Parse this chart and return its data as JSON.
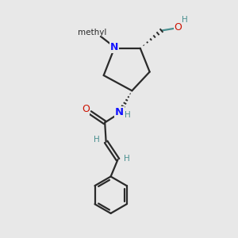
{
  "background_color": "#e8e8e8",
  "bond_color": "#2a2a2a",
  "nitrogen_color": "#1515ff",
  "oxygen_color": "#cc1100",
  "stereo_color": "#4a9090",
  "hydrogen_color": "#4a9090",
  "figsize": [
    3.0,
    3.0
  ],
  "dpi": 100,
  "xlim": [
    0,
    10
  ],
  "ylim": [
    0,
    10
  ]
}
